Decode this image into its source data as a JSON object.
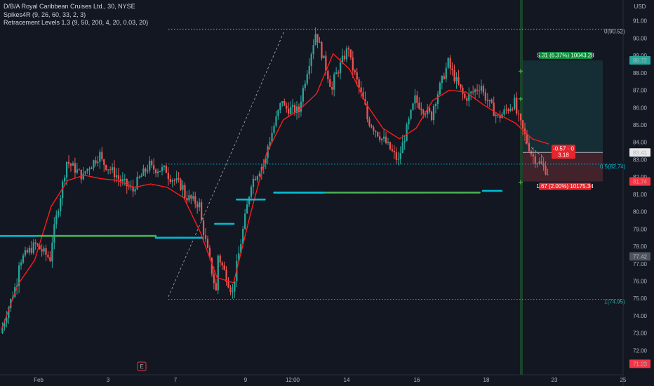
{
  "header": {
    "symbol_line": "D/B/A Royal Caribbean Cruises Ltd., 30, NYSE",
    "indicator_1": "Spikes4R (9, 26, 60, 33, 2, 3)",
    "indicator_2": "Retracement Levels 1.3 (9, 50, 200, 4, 20, 0.03, 20)",
    "currency": "USD"
  },
  "price_badges": {
    "target": "88.72",
    "current": "83.41",
    "stop": "81.74",
    "mid": "77.42",
    "bottom": "71.23"
  },
  "position_labels": {
    "target": "5.31 (6.37%) 10043.28",
    "risk_line1": "-0.57 · 0",
    "risk_line2": "3.18",
    "stop": "1.67 (2.00%) 10175.34"
  },
  "retracement_labels": {
    "top": "0(90.52)",
    "mid": "0.5(82.74)",
    "bottom": "1(74.95)"
  },
  "earnings_marker": "E",
  "colors": {
    "background": "#131722",
    "up": "#26a69a",
    "down": "#ef5350",
    "ma": "#ff1a1a",
    "cyan": "#00bcd4",
    "green_dots": "#4caf50"
  },
  "chart_data": {
    "type": "candlestick",
    "title": "D/B/A Royal Caribbean Cruises Ltd., 30, NYSE",
    "y_axis": {
      "range": [
        70.6,
        92.2
      ],
      "ticks": [
        "91.00",
        "90.00",
        "89.00",
        "88.00",
        "87.00",
        "86.00",
        "85.00",
        "84.00",
        "83.00",
        "82.00",
        "81.00",
        "80.00",
        "79.00",
        "78.00",
        "77.00",
        "76.00",
        "75.00",
        "74.00",
        "73.00",
        "72.00"
      ],
      "unit": "USD"
    },
    "x_axis": {
      "tick_labels": [
        "Feb",
        "3",
        "7",
        "9",
        "12:00",
        "14",
        "16",
        "18",
        "23",
        "25"
      ]
    },
    "price_path": [
      [
        73,
        76,
        -0.5
      ],
      [
        77,
        78,
        -0.3
      ],
      [
        78.2,
        77.3,
        0.3
      ],
      [
        77.7,
        82.9,
        -0.5
      ],
      [
        82.9,
        82,
        0.3
      ],
      [
        82.2,
        83.3,
        0
      ],
      [
        83,
        82.1,
        -0.2
      ],
      [
        82,
        81.2,
        0.2
      ],
      [
        81.4,
        82.7,
        0
      ],
      [
        82.5,
        82.4,
        0
      ],
      [
        82.2,
        81.4,
        -0.4
      ],
      [
        81,
        80.4,
        0
      ],
      [
        80,
        75.4,
        -2
      ],
      [
        77.8,
        75.3,
        0
      ],
      [
        75.5,
        81,
        0.4
      ],
      [
        81.5,
        83,
        0.5
      ],
      [
        83.4,
        86.5,
        0
      ],
      [
        86,
        85.8,
        0.2
      ],
      [
        86,
        90.3,
        0.2
      ],
      [
        90.4,
        87,
        -0.6
      ],
      [
        87.4,
        89.5,
        0.2
      ],
      [
        89,
        86,
        -0.5
      ],
      [
        85.5,
        84.2,
        0
      ],
      [
        84.3,
        82.9,
        0.3
      ],
      [
        83,
        86.5,
        0
      ],
      [
        86.4,
        85.5,
        0.2
      ],
      [
        85.8,
        88.6,
        -0.2
      ],
      [
        88.5,
        86.5,
        0.2
      ],
      [
        86.5,
        87.3,
        0
      ],
      [
        87,
        85.4,
        -0.3
      ],
      [
        85.4,
        86.3,
        0
      ],
      [
        86,
        83.4,
        -0.3
      ],
      [
        83.3,
        82.3,
        0
      ]
    ],
    "ma_path": [
      73.2,
      75.8,
      77.2,
      80.3,
      81.8,
      82.1,
      81.9,
      81.8,
      81.4,
      81.6,
      81.4,
      80.8,
      78.8,
      76.2,
      75.9,
      79.8,
      83.4,
      85.3,
      85.9,
      86.8,
      89.1,
      88.2,
      86.2,
      84.8,
      84.2,
      84.8,
      86.4,
      87,
      86.9,
      86.2,
      85.6,
      85.1,
      84.2,
      83.9
    ],
    "support_levels": [
      {
        "price": 78.6,
        "from": 0.0,
        "to": 0.25,
        "color": "cyan"
      },
      {
        "price": 78.6,
        "from": 0.06,
        "to": 0.25,
        "color": "green"
      },
      {
        "price": 78.5,
        "from": 0.25,
        "to": 0.325,
        "color": "cyan"
      },
      {
        "price": 79.3,
        "from": 0.345,
        "to": 0.375,
        "color": "cyan"
      },
      {
        "price": 80.7,
        "from": 0.38,
        "to": 0.425,
        "color": "cyan"
      },
      {
        "price": 81.1,
        "from": 0.44,
        "to": 0.77,
        "color": "green"
      },
      {
        "price": 81.1,
        "from": 0.44,
        "to": 0.52,
        "color": "cyan"
      },
      {
        "price": 81.2,
        "from": 0.775,
        "to": 0.805,
        "color": "cyan"
      }
    ],
    "retracement": {
      "level_0": 90.52,
      "level_05": 82.74,
      "level_1": 74.95
    },
    "position": {
      "entry": 83.41,
      "target": 88.72,
      "stop": 81.74
    },
    "spike_markers": [
      88.1,
      86.5,
      81.7
    ]
  }
}
